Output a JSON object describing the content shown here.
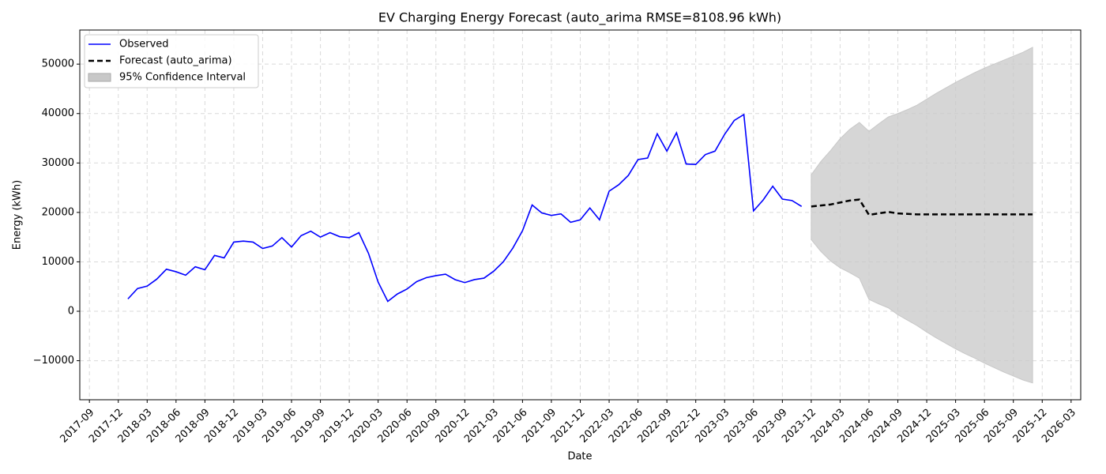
{
  "chart_data": {
    "type": "line",
    "title": "EV Charging Energy Forecast (auto_arima RMSE=8108.96 kWh)",
    "x_label": "Date",
    "y_label": "Energy (kWh)",
    "series": [
      {
        "name": "Observed",
        "color": "#0000ff",
        "dash": false,
        "x": [
          "2018-01",
          "2018-02",
          "2018-03",
          "2018-04",
          "2018-05",
          "2018-06",
          "2018-07",
          "2018-08",
          "2018-09",
          "2018-10",
          "2018-11",
          "2018-12",
          "2019-01",
          "2019-02",
          "2019-03",
          "2019-04",
          "2019-05",
          "2019-06",
          "2019-07",
          "2019-08",
          "2019-09",
          "2019-10",
          "2019-11",
          "2019-12",
          "2020-01",
          "2020-02",
          "2020-03",
          "2020-04",
          "2020-05",
          "2020-06",
          "2020-07",
          "2020-08",
          "2020-09",
          "2020-10",
          "2020-11",
          "2020-12",
          "2021-01",
          "2021-02",
          "2021-03",
          "2021-04",
          "2021-05",
          "2021-06",
          "2021-07",
          "2021-08",
          "2021-09",
          "2021-10",
          "2021-11",
          "2021-12",
          "2022-01",
          "2022-02",
          "2022-03",
          "2022-04",
          "2022-05",
          "2022-06",
          "2022-07",
          "2022-08",
          "2022-09",
          "2022-10",
          "2022-11",
          "2022-12",
          "2023-01",
          "2023-02",
          "2023-03",
          "2023-04",
          "2023-05",
          "2023-06",
          "2023-07",
          "2023-08",
          "2023-09",
          "2023-10",
          "2023-11"
        ],
        "values": [
          2500,
          4600,
          5100,
          6500,
          8500,
          8000,
          7300,
          9000,
          8400,
          11300,
          10800,
          14000,
          14200,
          14000,
          12700,
          13200,
          14900,
          13000,
          15300,
          16200,
          15000,
          15900,
          15100,
          14900,
          15900,
          11700,
          5900,
          2000,
          3500,
          4500,
          6000,
          6800,
          7200,
          7500,
          6400,
          5800,
          6400,
          6700,
          8100,
          10000,
          12800,
          16300,
          21500,
          19900,
          19400,
          19700,
          18000,
          18500,
          20900,
          18500,
          24300,
          25600,
          27500,
          30700,
          31000,
          35900,
          32400,
          36100,
          29800,
          29700,
          31700,
          32400,
          35800,
          38600,
          39800,
          20300,
          22500,
          25300,
          22700,
          22400,
          21200
        ]
      },
      {
        "name": "Forecast (auto_arima)",
        "color": "#000000",
        "dash": true,
        "x": [
          "2023-12",
          "2024-01",
          "2024-02",
          "2024-03",
          "2024-04",
          "2024-05",
          "2024-06",
          "2024-07",
          "2024-08",
          "2024-09",
          "2024-10",
          "2024-11",
          "2024-12",
          "2025-01",
          "2025-02",
          "2025-03",
          "2025-04",
          "2025-05",
          "2025-06",
          "2025-07",
          "2025-08",
          "2025-09",
          "2025-10",
          "2025-11"
        ],
        "values": [
          21200,
          21400,
          21600,
          22000,
          22400,
          22600,
          19500,
          19800,
          20100,
          19800,
          19700,
          19600,
          19600,
          19600,
          19600,
          19600,
          19600,
          19600,
          19600,
          19600,
          19600,
          19600,
          19600,
          19600
        ]
      }
    ],
    "bands": [
      {
        "name": "95% Confidence Interval",
        "color": "#c8c8c8",
        "x": [
          "2023-12",
          "2024-01",
          "2024-02",
          "2024-03",
          "2024-04",
          "2024-05",
          "2024-06",
          "2024-07",
          "2024-08",
          "2024-09",
          "2024-10",
          "2024-11",
          "2024-12",
          "2025-01",
          "2025-02",
          "2025-03",
          "2025-04",
          "2025-05",
          "2025-06",
          "2025-07",
          "2025-08",
          "2025-09",
          "2025-10",
          "2025-11"
        ],
        "upper": [
          27600,
          30300,
          32500,
          34900,
          36800,
          38200,
          36400,
          37900,
          39300,
          40000,
          40800,
          41700,
          42900,
          44100,
          45200,
          46300,
          47300,
          48300,
          49200,
          50000,
          50800,
          51600,
          52400,
          53400
        ],
        "lower": [
          14500,
          12100,
          10200,
          8800,
          7800,
          6700,
          2400,
          1500,
          700,
          -700,
          -1800,
          -2900,
          -4200,
          -5400,
          -6500,
          -7600,
          -8600,
          -9500,
          -10500,
          -11400,
          -12300,
          -13100,
          -13900,
          -14500
        ]
      }
    ],
    "xlim": [
      "2017-08",
      "2026-04"
    ],
    "xticks": [
      "2017-09",
      "2017-12",
      "2018-03",
      "2018-06",
      "2018-09",
      "2018-12",
      "2019-03",
      "2019-06",
      "2019-09",
      "2019-12",
      "2020-03",
      "2020-06",
      "2020-09",
      "2020-12",
      "2021-03",
      "2021-06",
      "2021-09",
      "2021-12",
      "2022-03",
      "2022-06",
      "2022-09",
      "2022-12",
      "2023-03",
      "2023-06",
      "2023-09",
      "2023-12",
      "2024-03",
      "2024-06",
      "2024-09",
      "2024-12",
      "2025-03",
      "2025-06",
      "2025-09",
      "2025-12",
      "2026-03"
    ],
    "ylim": [
      -17900,
      56900
    ],
    "yticks": [
      {
        "value": -10000,
        "label": "−10000"
      },
      0,
      10000,
      20000,
      30000,
      40000,
      50000
    ],
    "grid": true,
    "legend": "upper left"
  }
}
